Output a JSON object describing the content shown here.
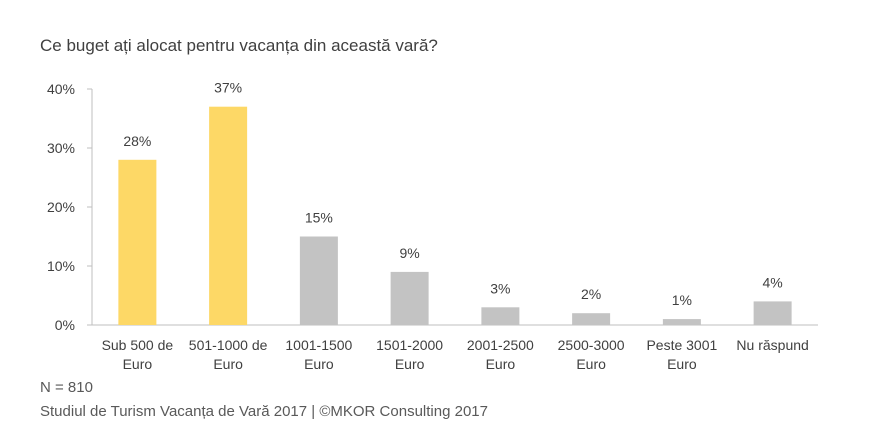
{
  "title": "Ce buget ați alocat pentru vacanța din această vară?",
  "footnote_n": "N = 810",
  "footnote_source": "Studiul de Turism Vacanța de Vară 2017 | ©MKOR Consulting 2017",
  "colors": {
    "highlight": "#FDD866",
    "default": "#C3C3C3",
    "axis": "#BFBFBF",
    "text": "#404040"
  },
  "chart_data": {
    "type": "bar",
    "categories": [
      [
        "Sub 500 de",
        "Euro"
      ],
      [
        "501-1000 de",
        "Euro"
      ],
      [
        "1001-1500",
        "Euro"
      ],
      [
        "1501-2000",
        "Euro"
      ],
      [
        "2001-2500",
        "Euro"
      ],
      [
        "2500-3000",
        "Euro"
      ],
      [
        "Peste 3001",
        "Euro"
      ],
      [
        "Nu răspund"
      ]
    ],
    "values": [
      28,
      37,
      15,
      9,
      3,
      2,
      1,
      4
    ],
    "value_labels": [
      "28%",
      "37%",
      "15%",
      "9%",
      "3%",
      "2%",
      "1%",
      "4%"
    ],
    "highlighted": [
      true,
      true,
      false,
      false,
      false,
      false,
      false,
      false
    ],
    "yticks": [
      0,
      10,
      20,
      30,
      40
    ],
    "ytick_labels": [
      "0%",
      "10%",
      "20%",
      "30%",
      "40%"
    ],
    "ylim": [
      0,
      40
    ],
    "grid": false,
    "legend": "none"
  }
}
